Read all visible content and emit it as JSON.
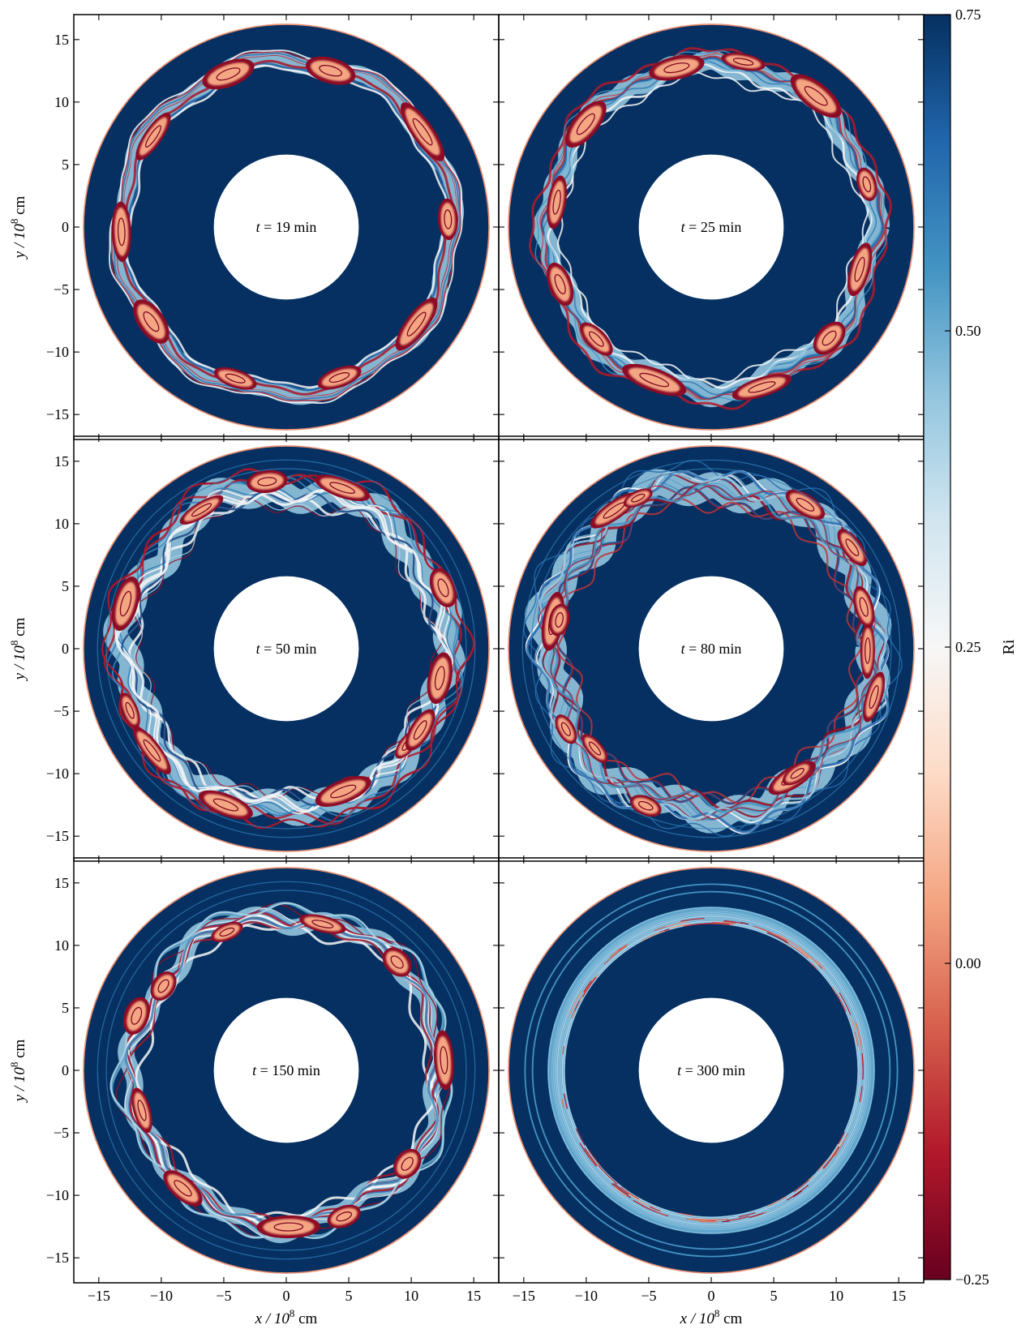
{
  "chart_data": {
    "type": "heatmap",
    "description_type": "polar Richardson-number maps, 3x2 panel grid",
    "colormap": "RdBu",
    "colorbar": {
      "label": "Ri",
      "min": -0.25,
      "max": 0.75,
      "ticks": [
        {
          "value": 0.75,
          "label": "0.75"
        },
        {
          "value": 0.5,
          "label": "0.50"
        },
        {
          "value": 0.25,
          "label": "0.25"
        },
        {
          "value": 0.0,
          "label": "0.00"
        },
        {
          "value": -0.25,
          "label": "−0.25"
        }
      ],
      "colors": [
        "#67001f",
        "#b2182b",
        "#d6604d",
        "#f4a582",
        "#fddbc7",
        "#f7f7f7",
        "#d1e5f0",
        "#92c5de",
        "#4393c3",
        "#2166ac",
        "#053061"
      ]
    },
    "axes": {
      "xlim": [
        -17,
        17
      ],
      "ylim": [
        -17,
        17
      ],
      "xlabel_pre": "x / 10",
      "xlabel_exp": "8",
      "xlabel_post": " cm",
      "ylabel_pre": "y / 10",
      "ylabel_exp": "8",
      "ylabel_post": " cm",
      "ticks": [
        -15,
        -10,
        -5,
        0,
        5,
        10,
        15
      ],
      "tick_labels": [
        "−15",
        "−10",
        "−5",
        "0",
        "5",
        "10",
        "15"
      ]
    },
    "domain": {
      "inner_radius": 5.8,
      "outer_radius": 16.2
    },
    "panels": [
      {
        "row": 0,
        "col": 0,
        "time_prefix": "t",
        "time_text": " = 19 min",
        "shear_ring_radius": 13.3,
        "shear_ring_width": 1.8,
        "vortex_count": 8,
        "irregularity": 0.15,
        "stable_ring": false
      },
      {
        "row": 0,
        "col": 1,
        "time_prefix": "t",
        "time_text": " = 25 min",
        "shear_ring_radius": 13.0,
        "shear_ring_width": 2.2,
        "vortex_count": 8,
        "irregularity": 0.35,
        "stable_ring": false
      },
      {
        "row": 1,
        "col": 0,
        "time_prefix": "t",
        "time_text": " = 50 min",
        "shear_ring_radius": 12.8,
        "shear_ring_width": 2.8,
        "vortex_count": 6,
        "irregularity": 0.7,
        "stable_ring": false
      },
      {
        "row": 1,
        "col": 1,
        "time_prefix": "t",
        "time_text": " = 80 min",
        "shear_ring_radius": 13.0,
        "shear_ring_width": 3.0,
        "vortex_count": 6,
        "irregularity": 0.8,
        "stable_ring": false
      },
      {
        "row": 2,
        "col": 0,
        "time_prefix": "t",
        "time_text": " = 150 min",
        "shear_ring_radius": 12.3,
        "shear_ring_width": 1.9,
        "vortex_count": 5,
        "irregularity": 0.6,
        "stable_ring": false
      },
      {
        "row": 2,
        "col": 1,
        "time_prefix": "t",
        "time_text": " = 300 min",
        "shear_ring_radius": 12.4,
        "shear_ring_width": 1.4,
        "vortex_count": 0,
        "irregularity": 0.05,
        "stable_ring": true
      }
    ]
  }
}
